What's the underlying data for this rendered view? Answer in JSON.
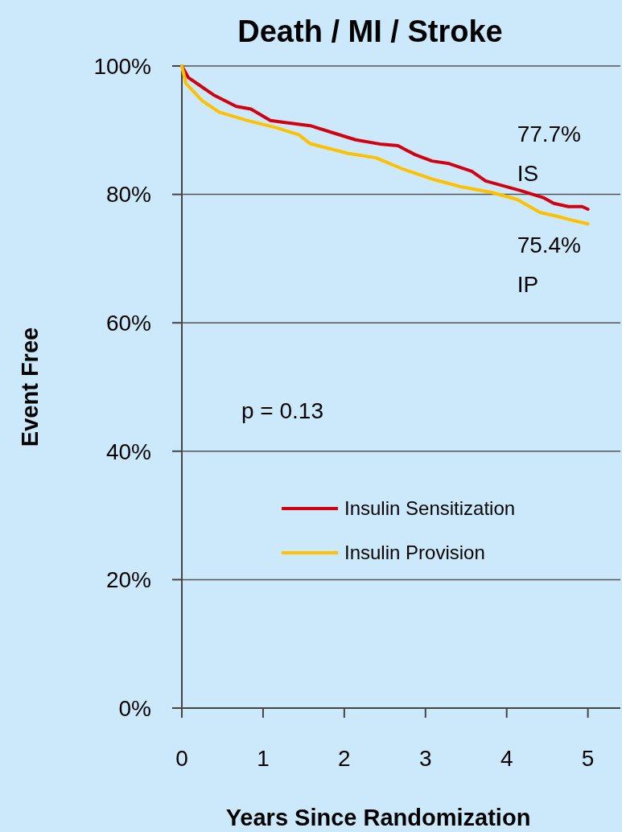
{
  "chart_data": {
    "type": "line",
    "title": "Death / MI / Stroke",
    "xlabel": "Years Since Randomization",
    "ylabel": "Event Free",
    "xlim": [
      0,
      5.4
    ],
    "xticks": [
      0,
      1,
      2,
      3,
      4,
      5
    ],
    "ylim": [
      0,
      100
    ],
    "yticks": [
      {
        "value": 0,
        "label": "0%"
      },
      {
        "value": 20,
        "label": "20%"
      },
      {
        "value": 40,
        "label": "40%"
      },
      {
        "value": 60,
        "label": "60%"
      },
      {
        "value": 80,
        "label": "80%"
      },
      {
        "value": 100,
        "label": "100%"
      }
    ],
    "grid": "y",
    "legend": "bottom left",
    "line_style": "solid",
    "series": [
      {
        "name": "Insulin Sensitization",
        "color": "#d00010",
        "x": [
          0,
          0.08,
          0.39,
          0.67,
          0.85,
          1.09,
          1.27,
          1.58,
          1.86,
          2.14,
          2.46,
          2.66,
          2.87,
          3.08,
          3.29,
          3.57,
          3.74,
          4.17,
          4.45,
          4.58,
          4.76,
          4.93,
          5
        ],
        "values": [
          100,
          98.2,
          95.5,
          93.7,
          93.3,
          91.5,
          91.2,
          90.7,
          89.6,
          88.5,
          87.8,
          87.6,
          86.2,
          85.2,
          84.8,
          83.6,
          82.1,
          80.6,
          79.5,
          78.6,
          78.1,
          78.1,
          77.7
        ]
      },
      {
        "name": "Insulin Provision",
        "color": "#ffc000",
        "x": [
          0,
          0.05,
          0.25,
          0.46,
          0.81,
          1.16,
          1.44,
          1.58,
          2.04,
          2.39,
          2.73,
          3.08,
          3.43,
          3.82,
          4.13,
          4.41,
          4.62,
          4.83,
          5
        ],
        "values": [
          100,
          97.3,
          94.6,
          92.8,
          91.5,
          90.4,
          89.3,
          87.9,
          86.4,
          85.7,
          83.9,
          82.4,
          81.2,
          80.3,
          79.2,
          77.2,
          76.6,
          75.9,
          75.4
        ]
      }
    ],
    "annotations": [
      "p =  0.13",
      {
        "text": "77.7%\nIS",
        "x": 5,
        "y": 77.7
      },
      {
        "text": "75.4%\nIP",
        "x": 5,
        "y": 75.4
      }
    ]
  }
}
